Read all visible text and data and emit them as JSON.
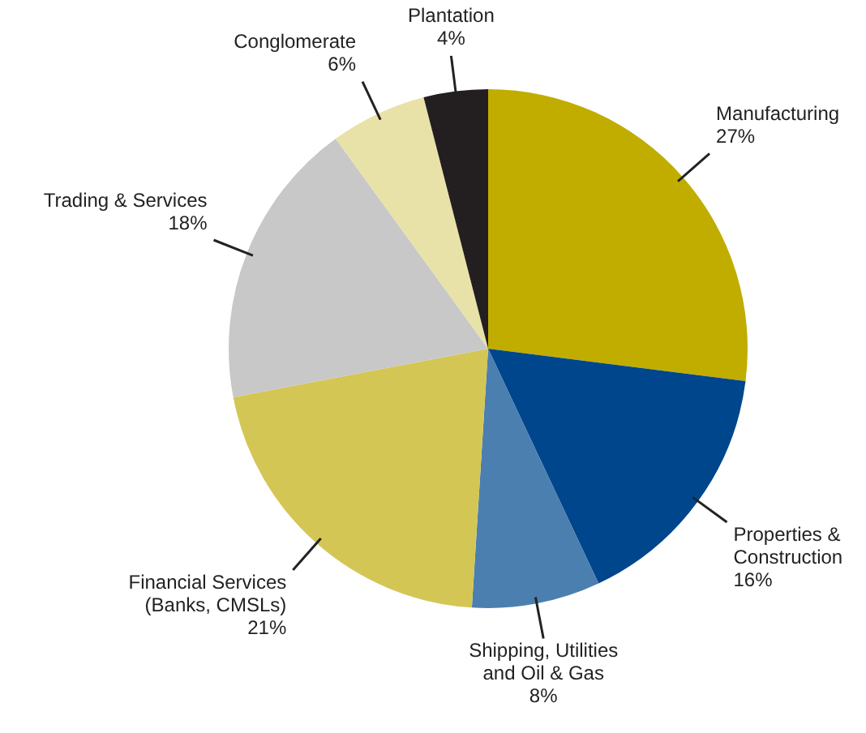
{
  "chart_data": {
    "type": "pie",
    "categories": [
      "Manufacturing",
      "Properties &\nConstruction",
      "Shipping, Utilities\nand Oil & Gas",
      "Financial Services\n(Banks, CMSLs)",
      "Trading & Services",
      "Conglomerate",
      "Plantation"
    ],
    "values": [
      27,
      16,
      8,
      21,
      18,
      6,
      4
    ],
    "colors": [
      "#c0ad00",
      "#00468c",
      "#4a7fb0",
      "#d4c655",
      "#c8c8c8",
      "#e8e2a8",
      "#231f20"
    ],
    "value_labels": [
      "27%",
      "16%",
      "8%",
      "21%",
      "18%",
      "6%",
      "4%"
    ],
    "legend": false
  }
}
